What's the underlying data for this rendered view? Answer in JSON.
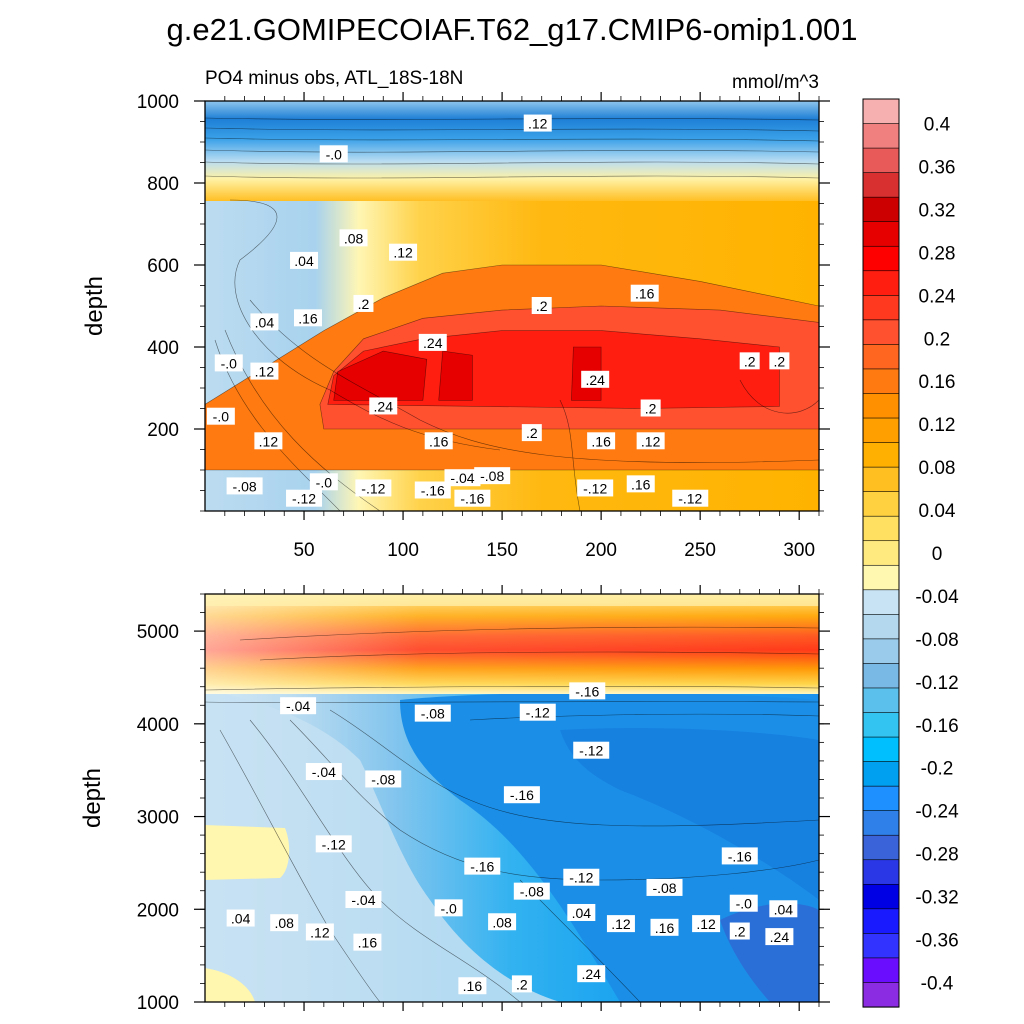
{
  "title": "g.e21.GOMIPECOIAF.T62_g17.CMIP6-omip1.001",
  "chart_data": [
    {
      "type": "heatmap",
      "panel": "top",
      "subtitle_left": "PO4 minus obs, ATL_18S-18N",
      "subtitle_right": "mmol/m^3",
      "xlabel": "",
      "ylabel": "depth",
      "xlim": [
        0,
        310
      ],
      "ylim": [
        1000,
        0
      ],
      "xticks": [
        "50",
        "100",
        "150",
        "200",
        "250",
        "300"
      ],
      "yticks": [
        "200",
        "400",
        "600",
        "800",
        "1000"
      ],
      "regions": [
        {
          "level": 0.16,
          "points": [
            [
              0,
              100
            ],
            [
              310,
              100
            ],
            [
              310,
              500
            ],
            [
              290,
              520
            ],
            [
              250,
              560
            ],
            [
              200,
              600
            ],
            [
              150,
              600
            ],
            [
              120,
              580
            ],
            [
              90,
              520
            ],
            [
              60,
              440
            ],
            [
              40,
              380
            ],
            [
              20,
              320
            ],
            [
              0,
              260
            ]
          ]
        },
        {
          "level": 0.2,
          "points": [
            [
              60,
              200
            ],
            [
              310,
              200
            ],
            [
              310,
              460
            ],
            [
              260,
              490
            ],
            [
              200,
              500
            ],
            [
              150,
              490
            ],
            [
              110,
              470
            ],
            [
              80,
              420
            ],
            [
              65,
              340
            ],
            [
              58,
              260
            ]
          ]
        },
        {
          "level": 0.24,
          "points": [
            [
              62,
              260
            ],
            [
              220,
              250
            ],
            [
              290,
              255
            ],
            [
              290,
              400
            ],
            [
              250,
              420
            ],
            [
              200,
              440
            ],
            [
              150,
              440
            ],
            [
              110,
              420
            ],
            [
              80,
              390
            ],
            [
              65,
              330
            ]
          ]
        },
        {
          "level": 0.28,
          "points": [
            [
              65,
              270
            ],
            [
              110,
              270
            ],
            [
              112,
              370
            ],
            [
              90,
              390
            ],
            [
              67,
              340
            ]
          ]
        },
        {
          "level": 0.28,
          "points": [
            [
              118,
              270
            ],
            [
              135,
              270
            ],
            [
              135,
              380
            ],
            [
              120,
              390
            ]
          ]
        },
        {
          "level": 0.28,
          "points": [
            [
              185,
              270
            ],
            [
              200,
              270
            ],
            [
              200,
              400
            ],
            [
              186,
              400
            ]
          ]
        }
      ],
      "contour_labels": [
        {
          "x": 50,
          "y": 30,
          "text": "-.12"
        },
        {
          "x": 135,
          "y": 30,
          "text": "-.16"
        },
        {
          "x": 245,
          "y": 30,
          "text": "-.12"
        },
        {
          "x": 20,
          "y": 60,
          "text": "-.08"
        },
        {
          "x": 60,
          "y": 70,
          "text": "-.0"
        },
        {
          "x": 85,
          "y": 55,
          "text": "-.12"
        },
        {
          "x": 115,
          "y": 50,
          "text": "-.16"
        },
        {
          "x": 145,
          "y": 85,
          "text": "-.08"
        },
        {
          "x": 130,
          "y": 80,
          "text": "-.04"
        },
        {
          "x": 197,
          "y": 55,
          "text": "-.12"
        },
        {
          "x": 220,
          "y": 65,
          "text": ".16"
        },
        {
          "x": 32,
          "y": 170,
          "text": ".12"
        },
        {
          "x": 118,
          "y": 170,
          "text": ".16"
        },
        {
          "x": 165,
          "y": 190,
          "text": ".2"
        },
        {
          "x": 200,
          "y": 170,
          "text": ".16"
        },
        {
          "x": 225,
          "y": 170,
          "text": ".12"
        },
        {
          "x": 90,
          "y": 255,
          "text": ".24"
        },
        {
          "x": 225,
          "y": 250,
          "text": ".2"
        },
        {
          "x": 197,
          "y": 320,
          "text": ".24"
        },
        {
          "x": 8,
          "y": 230,
          "text": "-.0"
        },
        {
          "x": 12,
          "y": 360,
          "text": "-.0"
        },
        {
          "x": 30,
          "y": 340,
          "text": ".12"
        },
        {
          "x": 115,
          "y": 410,
          "text": ".24"
        },
        {
          "x": 275,
          "y": 365,
          "text": ".2"
        },
        {
          "x": 290,
          "y": 365,
          "text": ".2"
        },
        {
          "x": 30,
          "y": 460,
          "text": ".04"
        },
        {
          "x": 52,
          "y": 470,
          "text": ".16"
        },
        {
          "x": 80,
          "y": 505,
          "text": ".2"
        },
        {
          "x": 170,
          "y": 500,
          "text": ".2"
        },
        {
          "x": 222,
          "y": 530,
          "text": ".16"
        },
        {
          "x": 50,
          "y": 610,
          "text": ".04"
        },
        {
          "x": 100,
          "y": 630,
          "text": ".12"
        },
        {
          "x": 75,
          "y": 665,
          "text": ".08"
        },
        {
          "x": 65,
          "y": 870,
          "text": "-.0"
        },
        {
          "x": 168,
          "y": 945,
          "text": ".12"
        }
      ]
    },
    {
      "type": "heatmap",
      "panel": "bottom",
      "xlabel": "",
      "ylabel": "depth",
      "xlim": [
        0,
        310
      ],
      "ylim": [
        5400,
        1000
      ],
      "xticks": [],
      "yticks": [
        "1000",
        "2000",
        "3000",
        "4000",
        "5000"
      ],
      "contour_labels": [
        {
          "x": 135,
          "y": 1170,
          "text": ".16"
        },
        {
          "x": 160,
          "y": 1190,
          "text": ".2"
        },
        {
          "x": 195,
          "y": 1300,
          "text": ".24"
        },
        {
          "x": 58,
          "y": 1750,
          "text": ".12"
        },
        {
          "x": 82,
          "y": 1640,
          "text": ".16"
        },
        {
          "x": 40,
          "y": 1850,
          "text": ".08"
        },
        {
          "x": 18,
          "y": 1900,
          "text": ".04"
        },
        {
          "x": 150,
          "y": 1860,
          "text": ".08"
        },
        {
          "x": 190,
          "y": 1960,
          "text": ".04"
        },
        {
          "x": 210,
          "y": 1840,
          "text": ".12"
        },
        {
          "x": 232,
          "y": 1800,
          "text": ".16"
        },
        {
          "x": 253,
          "y": 1840,
          "text": ".12"
        },
        {
          "x": 270,
          "y": 1760,
          "text": ".2"
        },
        {
          "x": 290,
          "y": 1700,
          "text": ".24"
        },
        {
          "x": 80,
          "y": 2100,
          "text": "-.04"
        },
        {
          "x": 123,
          "y": 2010,
          "text": "-.0"
        },
        {
          "x": 165,
          "y": 2190,
          "text": "-.08"
        },
        {
          "x": 190,
          "y": 2340,
          "text": "-.12"
        },
        {
          "x": 232,
          "y": 2230,
          "text": "-.08"
        },
        {
          "x": 272,
          "y": 2060,
          "text": "-.0"
        },
        {
          "x": 292,
          "y": 2000,
          "text": ".04"
        },
        {
          "x": 140,
          "y": 2460,
          "text": "-.16"
        },
        {
          "x": 270,
          "y": 2570,
          "text": "-.16"
        },
        {
          "x": 65,
          "y": 2700,
          "text": "-.12"
        },
        {
          "x": 160,
          "y": 3230,
          "text": "-.16"
        },
        {
          "x": 90,
          "y": 3400,
          "text": "-.08"
        },
        {
          "x": 60,
          "y": 3480,
          "text": "-.04"
        },
        {
          "x": 195,
          "y": 3710,
          "text": "-.12"
        },
        {
          "x": 115,
          "y": 4110,
          "text": "-.08"
        },
        {
          "x": 168,
          "y": 4120,
          "text": "-.12"
        },
        {
          "x": 193,
          "y": 4350,
          "text": "-.16"
        },
        {
          "x": 47,
          "y": 4190,
          "text": "-.04"
        }
      ]
    }
  ],
  "colorbar": {
    "colors": [
      "#8b2be2",
      "#6a0dff",
      "#3333ff",
      "#1a1aff",
      "#0000e5",
      "#2a37e6",
      "#3a63d9",
      "#2f80e8",
      "#1e90ff",
      "#00a0f0",
      "#00bfff",
      "#33c4f2",
      "#5bc0eb",
      "#79b9e6",
      "#9bcbea",
      "#b4d8ee",
      "#c8e3f3",
      "#fff8b0",
      "#ffea80",
      "#ffe060",
      "#ffd040",
      "#ffbf20",
      "#ffb000",
      "#ffa000",
      "#ff9000",
      "#ff7a10",
      "#ff6620",
      "#ff5030",
      "#ff3820",
      "#ff1e10",
      "#ff0000",
      "#e60000",
      "#cc0000",
      "#d83030",
      "#e85a5a",
      "#f08080",
      "#f7b0b0"
    ],
    "labels": [
      "-0.4",
      "-0.36",
      "-0.32",
      "-0.28",
      "-0.24",
      "-0.2",
      "-0.16",
      "-0.12",
      "-0.08",
      "-0.04",
      "0",
      "0.04",
      "0.08",
      "0.12",
      "0.16",
      "0.2",
      "0.24",
      "0.28",
      "0.32",
      "0.36",
      "0.4"
    ]
  }
}
